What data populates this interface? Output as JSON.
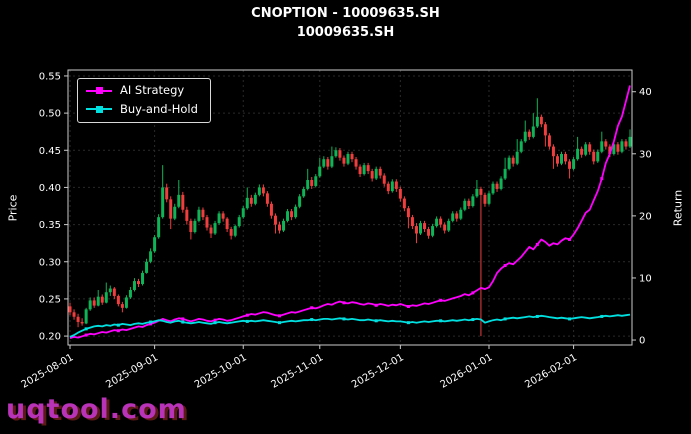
{
  "title": "CNOPTION - 10009635.SH",
  "subtitle": "10009635.SH",
  "watermark": "uqtool.com",
  "axes": {
    "left_label": "Price",
    "right_label": "Return"
  },
  "legend": {
    "position": "upper left",
    "items": [
      {
        "label": "AI Strategy",
        "color": "#ff00ff"
      },
      {
        "label": "Buy-and-Hold",
        "color": "#00e0e0"
      }
    ]
  },
  "chart_data": {
    "type": "candlestick",
    "title": "CNOPTION - 10009635.SH",
    "subtitle": "10009635.SH",
    "ylabel_left": "Price",
    "ylabel_right": "Return",
    "grid": true,
    "up_color": "#0fb457",
    "down_color": "#f03e3e",
    "x_tick_labels": [
      "2025-08-01",
      "2025-09-01",
      "2025-10-01",
      "2025-11-01",
      "2025-12-01",
      "2026-01-01",
      "2026-02-01"
    ],
    "x_tick_indices": [
      0,
      21,
      43,
      62,
      82,
      104,
      125
    ],
    "price_ticks": [
      0.2,
      0.25,
      0.3,
      0.35,
      0.4,
      0.45,
      0.5,
      0.55
    ],
    "price_ylim": [
      0.188,
      0.558
    ],
    "return_ticks": [
      0,
      10,
      20,
      30,
      40
    ],
    "return_ylim": [
      -0.8,
      43.5
    ],
    "candles_ohlc": [
      [
        0.24,
        0.245,
        0.228,
        0.232
      ],
      [
        0.232,
        0.236,
        0.222,
        0.226
      ],
      [
        0.226,
        0.23,
        0.212,
        0.219
      ],
      [
        0.219,
        0.224,
        0.214,
        0.217
      ],
      [
        0.217,
        0.238,
        0.216,
        0.236
      ],
      [
        0.236,
        0.252,
        0.234,
        0.248
      ],
      [
        0.248,
        0.252,
        0.238,
        0.241
      ],
      [
        0.241,
        0.262,
        0.24,
        0.253
      ],
      [
        0.253,
        0.256,
        0.242,
        0.245
      ],
      [
        0.245,
        0.272,
        0.244,
        0.259
      ],
      [
        0.259,
        0.268,
        0.254,
        0.264
      ],
      [
        0.264,
        0.266,
        0.25,
        0.254
      ],
      [
        0.254,
        0.256,
        0.24,
        0.243
      ],
      [
        0.243,
        0.246,
        0.232,
        0.238
      ],
      [
        0.238,
        0.255,
        0.237,
        0.252
      ],
      [
        0.252,
        0.266,
        0.25,
        0.262
      ],
      [
        0.262,
        0.278,
        0.26,
        0.274
      ],
      [
        0.274,
        0.277,
        0.266,
        0.27
      ],
      [
        0.27,
        0.288,
        0.268,
        0.285
      ],
      [
        0.285,
        0.304,
        0.284,
        0.3
      ],
      [
        0.3,
        0.318,
        0.298,
        0.314
      ],
      [
        0.314,
        0.336,
        0.312,
        0.333
      ],
      [
        0.333,
        0.364,
        0.331,
        0.36
      ],
      [
        0.36,
        0.43,
        0.358,
        0.4
      ],
      [
        0.4,
        0.405,
        0.38,
        0.384
      ],
      [
        0.384,
        0.388,
        0.344,
        0.358
      ],
      [
        0.358,
        0.378,
        0.356,
        0.374
      ],
      [
        0.374,
        0.41,
        0.372,
        0.39
      ],
      [
        0.39,
        0.394,
        0.366,
        0.37
      ],
      [
        0.37,
        0.374,
        0.35,
        0.355
      ],
      [
        0.355,
        0.358,
        0.33,
        0.34
      ],
      [
        0.34,
        0.358,
        0.338,
        0.355
      ],
      [
        0.355,
        0.374,
        0.353,
        0.37
      ],
      [
        0.37,
        0.373,
        0.356,
        0.36
      ],
      [
        0.36,
        0.363,
        0.342,
        0.346
      ],
      [
        0.346,
        0.35,
        0.332,
        0.338
      ],
      [
        0.338,
        0.355,
        0.336,
        0.352
      ],
      [
        0.352,
        0.368,
        0.35,
        0.365
      ],
      [
        0.365,
        0.368,
        0.354,
        0.358
      ],
      [
        0.358,
        0.36,
        0.34,
        0.344
      ],
      [
        0.344,
        0.347,
        0.33,
        0.335
      ],
      [
        0.335,
        0.35,
        0.333,
        0.348
      ],
      [
        0.348,
        0.363,
        0.346,
        0.36
      ],
      [
        0.36,
        0.375,
        0.358,
        0.372
      ],
      [
        0.372,
        0.4,
        0.37,
        0.386
      ],
      [
        0.386,
        0.39,
        0.374,
        0.378
      ],
      [
        0.378,
        0.393,
        0.376,
        0.39
      ],
      [
        0.39,
        0.404,
        0.388,
        0.4
      ],
      [
        0.4,
        0.404,
        0.388,
        0.392
      ],
      [
        0.392,
        0.395,
        0.374,
        0.378
      ],
      [
        0.378,
        0.381,
        0.358,
        0.362
      ],
      [
        0.362,
        0.365,
        0.338,
        0.35
      ],
      [
        0.35,
        0.354,
        0.338,
        0.342
      ],
      [
        0.342,
        0.358,
        0.34,
        0.355
      ],
      [
        0.355,
        0.371,
        0.353,
        0.368
      ],
      [
        0.368,
        0.371,
        0.356,
        0.36
      ],
      [
        0.36,
        0.377,
        0.358,
        0.374
      ],
      [
        0.374,
        0.391,
        0.372,
        0.388
      ],
      [
        0.388,
        0.401,
        0.386,
        0.398
      ],
      [
        0.398,
        0.425,
        0.396,
        0.41
      ],
      [
        0.41,
        0.414,
        0.398,
        0.402
      ],
      [
        0.402,
        0.418,
        0.4,
        0.415
      ],
      [
        0.415,
        0.44,
        0.413,
        0.428
      ],
      [
        0.428,
        0.442,
        0.426,
        0.438
      ],
      [
        0.438,
        0.441,
        0.424,
        0.428
      ],
      [
        0.428,
        0.455,
        0.426,
        0.442
      ],
      [
        0.442,
        0.454,
        0.44,
        0.45
      ],
      [
        0.45,
        0.453,
        0.436,
        0.44
      ],
      [
        0.44,
        0.443,
        0.428,
        0.432
      ],
      [
        0.432,
        0.448,
        0.43,
        0.445
      ],
      [
        0.445,
        0.448,
        0.434,
        0.438
      ],
      [
        0.438,
        0.441,
        0.424,
        0.428
      ],
      [
        0.428,
        0.431,
        0.414,
        0.418
      ],
      [
        0.418,
        0.433,
        0.416,
        0.43
      ],
      [
        0.43,
        0.433,
        0.418,
        0.422
      ],
      [
        0.422,
        0.425,
        0.408,
        0.412
      ],
      [
        0.412,
        0.428,
        0.41,
        0.425
      ],
      [
        0.425,
        0.428,
        0.412,
        0.416
      ],
      [
        0.416,
        0.419,
        0.401,
        0.405
      ],
      [
        0.405,
        0.408,
        0.391,
        0.395
      ],
      [
        0.395,
        0.411,
        0.393,
        0.408
      ],
      [
        0.408,
        0.411,
        0.394,
        0.398
      ],
      [
        0.398,
        0.401,
        0.381,
        0.385
      ],
      [
        0.385,
        0.388,
        0.368,
        0.372
      ],
      [
        0.372,
        0.375,
        0.345,
        0.36
      ],
      [
        0.36,
        0.363,
        0.344,
        0.348
      ],
      [
        0.348,
        0.352,
        0.325,
        0.338
      ],
      [
        0.338,
        0.355,
        0.336,
        0.352
      ],
      [
        0.352,
        0.355,
        0.34,
        0.344
      ],
      [
        0.344,
        0.347,
        0.331,
        0.335
      ],
      [
        0.335,
        0.351,
        0.333,
        0.348
      ],
      [
        0.348,
        0.361,
        0.346,
        0.358
      ],
      [
        0.358,
        0.361,
        0.346,
        0.35
      ],
      [
        0.35,
        0.353,
        0.338,
        0.342
      ],
      [
        0.342,
        0.358,
        0.34,
        0.355
      ],
      [
        0.355,
        0.368,
        0.353,
        0.365
      ],
      [
        0.365,
        0.368,
        0.354,
        0.358
      ],
      [
        0.358,
        0.373,
        0.356,
        0.37
      ],
      [
        0.37,
        0.385,
        0.368,
        0.382
      ],
      [
        0.382,
        0.385,
        0.371,
        0.375
      ],
      [
        0.375,
        0.391,
        0.373,
        0.388
      ],
      [
        0.388,
        0.41,
        0.386,
        0.398
      ],
      [
        0.398,
        0.401,
        0.2,
        0.39
      ],
      [
        0.39,
        0.393,
        0.374,
        0.378
      ],
      [
        0.378,
        0.395,
        0.376,
        0.392
      ],
      [
        0.392,
        0.408,
        0.39,
        0.405
      ],
      [
        0.405,
        0.408,
        0.394,
        0.398
      ],
      [
        0.398,
        0.415,
        0.396,
        0.412
      ],
      [
        0.412,
        0.44,
        0.41,
        0.425
      ],
      [
        0.425,
        0.443,
        0.423,
        0.44
      ],
      [
        0.44,
        0.443,
        0.428,
        0.432
      ],
      [
        0.432,
        0.465,
        0.43,
        0.448
      ],
      [
        0.448,
        0.465,
        0.446,
        0.462
      ],
      [
        0.462,
        0.49,
        0.46,
        0.475
      ],
      [
        0.475,
        0.478,
        0.464,
        0.468
      ],
      [
        0.468,
        0.5,
        0.466,
        0.482
      ],
      [
        0.482,
        0.52,
        0.48,
        0.495
      ],
      [
        0.495,
        0.498,
        0.481,
        0.485
      ],
      [
        0.485,
        0.488,
        0.455,
        0.47
      ],
      [
        0.47,
        0.473,
        0.451,
        0.455
      ],
      [
        0.455,
        0.458,
        0.425,
        0.442
      ],
      [
        0.442,
        0.445,
        0.428,
        0.432
      ],
      [
        0.432,
        0.448,
        0.43,
        0.445
      ],
      [
        0.445,
        0.448,
        0.431,
        0.435
      ],
      [
        0.435,
        0.438,
        0.412,
        0.425
      ],
      [
        0.425,
        0.441,
        0.423,
        0.438
      ],
      [
        0.438,
        0.468,
        0.436,
        0.452
      ],
      [
        0.452,
        0.455,
        0.44,
        0.444
      ],
      [
        0.444,
        0.461,
        0.442,
        0.458
      ],
      [
        0.458,
        0.461,
        0.444,
        0.448
      ],
      [
        0.448,
        0.451,
        0.431,
        0.435
      ],
      [
        0.435,
        0.451,
        0.433,
        0.448
      ],
      [
        0.448,
        0.475,
        0.446,
        0.462
      ],
      [
        0.462,
        0.465,
        0.451,
        0.455
      ],
      [
        0.455,
        0.458,
        0.441,
        0.445
      ],
      [
        0.445,
        0.461,
        0.443,
        0.458
      ],
      [
        0.458,
        0.461,
        0.444,
        0.448
      ],
      [
        0.448,
        0.465,
        0.446,
        0.462
      ],
      [
        0.462,
        0.465,
        0.451,
        0.455
      ],
      [
        0.455,
        0.478,
        0.453,
        0.468
      ]
    ],
    "series": [
      {
        "name": "AI Strategy",
        "axis": "return",
        "color": "#ff00ff",
        "values": [
          0.3,
          0.5,
          0.4,
          0.6,
          0.8,
          1.0,
          0.9,
          1.1,
          1.3,
          1.2,
          1.4,
          1.6,
          1.5,
          1.7,
          1.6,
          1.8,
          2.0,
          2.2,
          2.1,
          2.4,
          2.6,
          2.8,
          3.1,
          3.4,
          3.2,
          3.0,
          3.3,
          3.5,
          3.4,
          3.2,
          3.0,
          3.2,
          3.4,
          3.3,
          3.1,
          3.0,
          3.2,
          3.4,
          3.3,
          3.1,
          3.2,
          3.4,
          3.6,
          3.8,
          4.0,
          4.2,
          4.1,
          4.3,
          4.5,
          4.4,
          4.2,
          4.0,
          3.9,
          4.1,
          4.3,
          4.5,
          4.4,
          4.6,
          4.8,
          5.0,
          5.2,
          5.1,
          5.3,
          5.6,
          5.8,
          5.7,
          6.0,
          6.2,
          6.0,
          5.9,
          6.1,
          6.0,
          5.8,
          5.7,
          5.9,
          5.8,
          5.6,
          5.8,
          5.7,
          5.5,
          5.7,
          5.6,
          5.8,
          5.6,
          5.4,
          5.6,
          5.5,
          5.7,
          5.9,
          5.8,
          6.0,
          6.2,
          6.4,
          6.3,
          6.5,
          6.7,
          6.9,
          7.1,
          7.4,
          7.2,
          7.6,
          8.0,
          8.4,
          8.2,
          8.5,
          9.5,
          10.8,
          11.5,
          12.0,
          12.4,
          12.2,
          12.8,
          13.4,
          14.2,
          15.0,
          14.6,
          15.4,
          16.2,
          15.8,
          15.2,
          15.6,
          15.4,
          16.0,
          16.4,
          16.2,
          17.0,
          18.0,
          19.2,
          20.5,
          21.0,
          22.5,
          24.0,
          26.0,
          28.5,
          30.0,
          32.0,
          34.5,
          36.0,
          38.5,
          41.0
        ]
      },
      {
        "name": "Buy-and-Hold",
        "axis": "return",
        "color": "#00e0e0",
        "values": [
          0.5,
          0.8,
          1.2,
          1.5,
          1.8,
          2.0,
          2.2,
          2.3,
          2.2,
          2.4,
          2.3,
          2.5,
          2.4,
          2.6,
          2.5,
          2.4,
          2.6,
          2.7,
          2.6,
          2.8,
          2.9,
          3.0,
          3.2,
          3.1,
          2.9,
          2.8,
          3.0,
          3.1,
          2.9,
          2.8,
          2.7,
          2.8,
          2.9,
          2.8,
          2.7,
          2.6,
          2.8,
          2.9,
          2.8,
          2.7,
          2.8,
          2.9,
          3.0,
          3.1,
          3.0,
          3.1,
          3.0,
          3.1,
          3.2,
          3.1,
          3.0,
          2.9,
          2.8,
          2.9,
          3.0,
          3.1,
          3.0,
          3.1,
          3.2,
          3.2,
          3.3,
          3.2,
          3.3,
          3.4,
          3.4,
          3.3,
          3.4,
          3.5,
          3.4,
          3.3,
          3.4,
          3.3,
          3.2,
          3.2,
          3.3,
          3.2,
          3.1,
          3.2,
          3.1,
          3.0,
          3.1,
          3.0,
          3.0,
          2.9,
          2.8,
          2.9,
          2.8,
          2.9,
          3.0,
          2.9,
          3.0,
          3.1,
          3.1,
          3.0,
          3.1,
          3.2,
          3.1,
          3.2,
          3.3,
          3.2,
          3.3,
          3.4,
          3.3,
          2.8,
          3.0,
          3.2,
          3.3,
          3.2,
          3.4,
          3.5,
          3.6,
          3.5,
          3.6,
          3.7,
          3.8,
          3.7,
          3.8,
          3.9,
          3.8,
          3.7,
          3.6,
          3.5,
          3.6,
          3.5,
          3.4,
          3.5,
          3.6,
          3.7,
          3.6,
          3.5,
          3.6,
          3.7,
          3.8,
          3.9,
          3.8,
          3.9,
          4.0,
          3.9,
          4.0,
          4.1
        ]
      }
    ]
  }
}
